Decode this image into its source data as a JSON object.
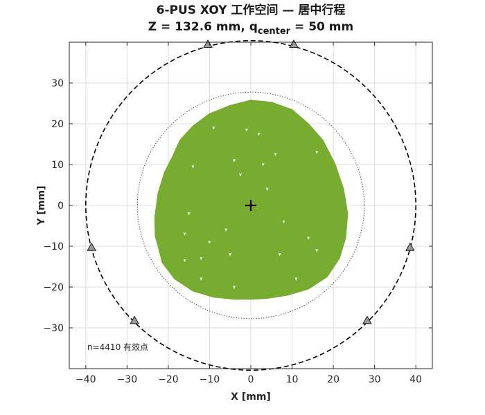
{
  "chart_data": {
    "type": "scatter",
    "title_line1": "6-PUS XOY 工作空间 — 居中行程",
    "title_line2": {
      "prefix": "Z = 132.6 mm,  q",
      "subscript": "center",
      "suffix": " = 50 mm"
    },
    "xlabel": "X [mm]",
    "ylabel": "Y [mm]",
    "xlim": [
      -44,
      44
    ],
    "ylim": [
      -40,
      40
    ],
    "xticks": [
      -40,
      -30,
      -20,
      -10,
      0,
      10,
      20,
      30,
      40
    ],
    "yticks": [
      -30,
      -20,
      -10,
      0,
      10,
      20,
      30
    ],
    "grid": true,
    "aspect": "equal",
    "annotation": "n=4410 有效点",
    "colors": {
      "workspace": "#77ac30",
      "anchor_fill": "#999999",
      "anchor_edge": "#1a1a1a",
      "dashed_circle": "#000000",
      "dotted_circle": "#333333",
      "grid": "#dcdcdc",
      "axes": "#262626"
    },
    "workspace_boundary": [
      [
        0,
        25.8
      ],
      [
        5,
        25.3
      ],
      [
        10,
        23.5
      ],
      [
        14,
        20.0
      ],
      [
        17.5,
        16.0
      ],
      [
        20.5,
        10.0
      ],
      [
        22.5,
        4.0
      ],
      [
        23.5,
        -2.0
      ],
      [
        23.0,
        -8.0
      ],
      [
        21.5,
        -13.0
      ],
      [
        18.5,
        -17.5
      ],
      [
        14.0,
        -20.5
      ],
      [
        9.0,
        -22.0
      ],
      [
        4.0,
        -22.8
      ],
      [
        0,
        -23.0
      ],
      [
        -4.0,
        -23.0
      ],
      [
        -9.0,
        -22.5
      ],
      [
        -14.0,
        -21.0
      ],
      [
        -18.5,
        -18.0
      ],
      [
        -21.5,
        -14.0
      ],
      [
        -22.5,
        -10.0
      ],
      [
        -23.2,
        -7.5
      ],
      [
        -23.3,
        -3.0
      ],
      [
        -22.5,
        3.0
      ],
      [
        -21.0,
        8.0
      ],
      [
        -19.0,
        12.0
      ],
      [
        -17.2,
        16.0
      ],
      [
        -14.0,
        19.5
      ],
      [
        -10.0,
        22.5
      ],
      [
        -5.0,
        24.5
      ],
      [
        0,
        25.8
      ]
    ],
    "center_marker": [
      0,
      0
    ],
    "dashed_circle_radius": 40,
    "dotted_circle_radius": 27.5,
    "anchors": [
      [
        -10.4,
        39.5
      ],
      [
        10.4,
        39.5
      ],
      [
        38.6,
        -10.3
      ],
      [
        28.2,
        -28.2
      ],
      [
        -28.2,
        -28.2
      ],
      [
        -38.6,
        -10.3
      ]
    ],
    "holes": [
      [
        -9,
        19
      ],
      [
        -1,
        18.5
      ],
      [
        -4,
        11
      ],
      [
        -14,
        9.5
      ],
      [
        -2.5,
        7.5
      ],
      [
        -15,
        -2
      ],
      [
        -16,
        -7
      ],
      [
        -16,
        -13.5
      ],
      [
        -12,
        -13
      ],
      [
        -12,
        -18
      ],
      [
        -5,
        -12
      ],
      [
        -6,
        -6
      ],
      [
        3,
        10
      ],
      [
        6,
        12.5
      ],
      [
        2,
        17.5
      ],
      [
        4,
        4
      ],
      [
        8,
        -4
      ],
      [
        14,
        -8
      ],
      [
        16,
        -11
      ],
      [
        7,
        -12
      ],
      [
        11,
        -18
      ],
      [
        -4,
        -20
      ],
      [
        16,
        13
      ],
      [
        -10,
        -9
      ]
    ]
  }
}
